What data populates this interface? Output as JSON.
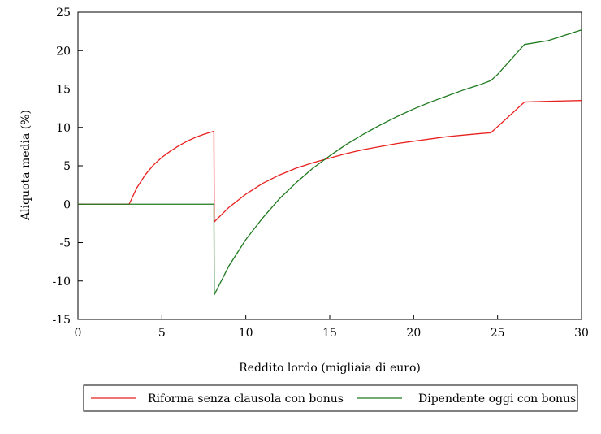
{
  "chart_data": {
    "type": "line",
    "title": "",
    "xlabel": "Reddito lordo (migliaia di euro)",
    "ylabel": "Aliquota media (%)",
    "xlim": [
      0,
      30
    ],
    "ylim": [
      -15,
      25
    ],
    "xticks": [
      0,
      5,
      10,
      15,
      20,
      25,
      30
    ],
    "yticks": [
      -15,
      -10,
      -5,
      0,
      5,
      10,
      15,
      20,
      25
    ],
    "grid": false,
    "legend_position": "bottom",
    "series": [
      {
        "name": "Riforma senza clausola con bonus",
        "color": "#e8201e",
        "points": [
          [
            0,
            0
          ],
          [
            3.05,
            0
          ],
          [
            3.5,
            2.1
          ],
          [
            4,
            3.8
          ],
          [
            4.5,
            5.1
          ],
          [
            5,
            6.1
          ],
          [
            5.5,
            6.9
          ],
          [
            6,
            7.6
          ],
          [
            6.5,
            8.2
          ],
          [
            7,
            8.7
          ],
          [
            7.5,
            9.1
          ],
          [
            8.1,
            9.5
          ],
          [
            8.12,
            -2.3
          ],
          [
            9,
            -0.4
          ],
          [
            10,
            1.3
          ],
          [
            11,
            2.7
          ],
          [
            12,
            3.8
          ],
          [
            13,
            4.7
          ],
          [
            14,
            5.4
          ],
          [
            15,
            6.0
          ],
          [
            16,
            6.6
          ],
          [
            17,
            7.1
          ],
          [
            18,
            7.5
          ],
          [
            19,
            7.9
          ],
          [
            20,
            8.2
          ],
          [
            21,
            8.5
          ],
          [
            22,
            8.8
          ],
          [
            23,
            9.0
          ],
          [
            24,
            9.2
          ],
          [
            24.6,
            9.3
          ],
          [
            26.6,
            13.3
          ],
          [
            28,
            13.4
          ],
          [
            30,
            13.5
          ]
        ]
      },
      {
        "name": "Dipendente oggi con bonus",
        "color": "#1f7a1f",
        "points": [
          [
            0,
            0
          ],
          [
            8.1,
            0
          ],
          [
            8.12,
            -11.8
          ],
          [
            9,
            -8.0
          ],
          [
            10,
            -4.6
          ],
          [
            11,
            -1.8
          ],
          [
            12,
            0.7
          ],
          [
            13,
            2.8
          ],
          [
            14,
            4.7
          ],
          [
            15,
            6.3
          ],
          [
            16,
            7.8
          ],
          [
            17,
            9.1
          ],
          [
            18,
            10.3
          ],
          [
            19,
            11.4
          ],
          [
            20,
            12.4
          ],
          [
            21,
            13.3
          ],
          [
            22,
            14.1
          ],
          [
            23,
            14.9
          ],
          [
            24,
            15.6
          ],
          [
            24.6,
            16.1
          ],
          [
            25,
            16.9
          ],
          [
            26.6,
            20.8
          ],
          [
            28,
            21.3
          ],
          [
            30,
            22.7
          ]
        ]
      }
    ]
  }
}
